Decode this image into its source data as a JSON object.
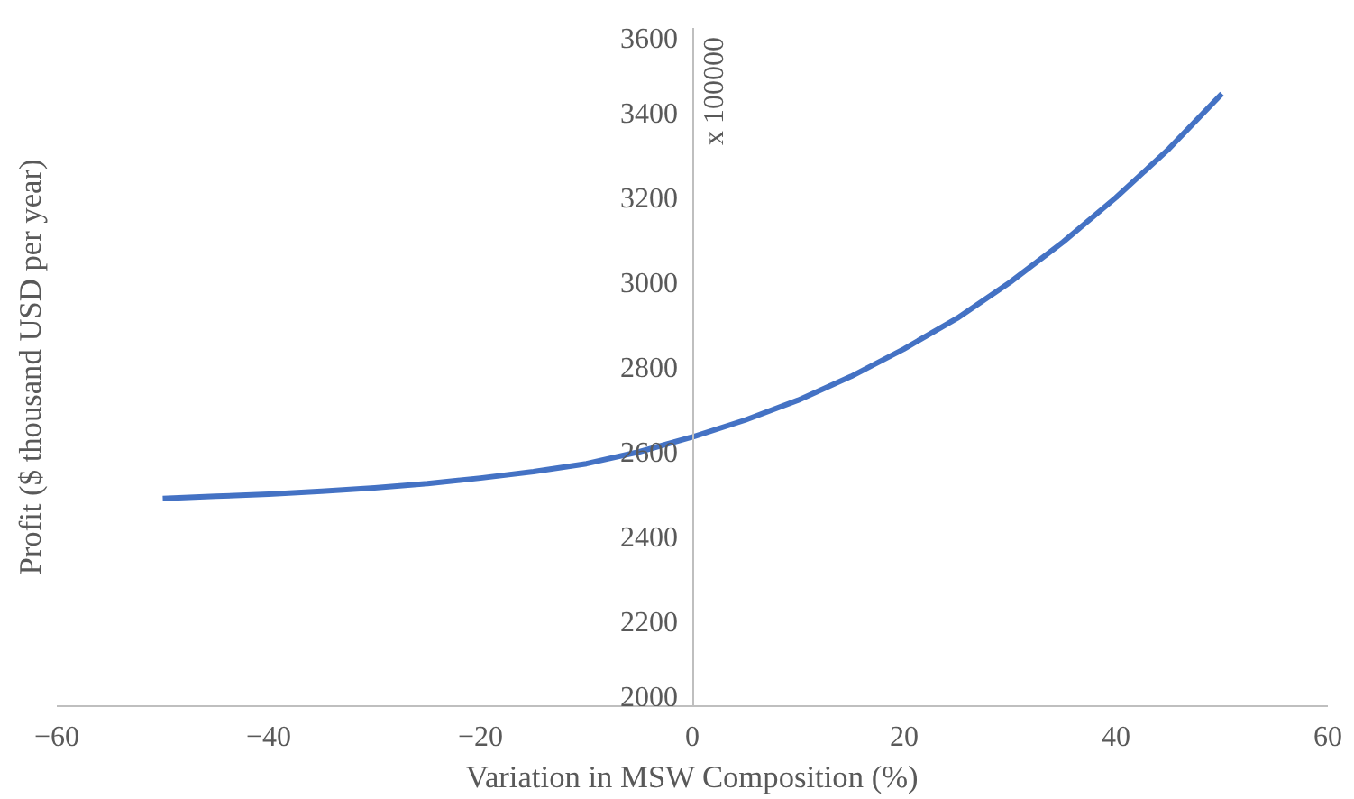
{
  "chart_data": {
    "type": "line",
    "xlabel": "Variation in MSW Composition (%)",
    "ylabel": "Profit ($ thousand USD per year)",
    "annotations": [
      "x 100000"
    ],
    "x": [
      -50,
      -45,
      -40,
      -35,
      -30,
      -25,
      -20,
      -15,
      -10,
      -5,
      0,
      5,
      10,
      15,
      20,
      25,
      30,
      35,
      40,
      45,
      50
    ],
    "series": [
      {
        "color": "#4472c4",
        "values": [
          2490,
          2495,
          2500,
          2507,
          2515,
          2525,
          2538,
          2553,
          2572,
          2600,
          2635,
          2675,
          2722,
          2778,
          2843,
          2915,
          3000,
          3095,
          3200,
          3315,
          3445
        ]
      }
    ],
    "xlim": [
      -60,
      60
    ],
    "ylim": [
      2000,
      3600
    ],
    "xticks": [
      -60,
      -40,
      -20,
      0,
      20,
      40,
      60
    ],
    "yticks": [
      2000,
      2200,
      2400,
      2600,
      2800,
      3000,
      3200,
      3400,
      3600
    ],
    "grid": false,
    "marker": "none",
    "line_style": "solid"
  }
}
